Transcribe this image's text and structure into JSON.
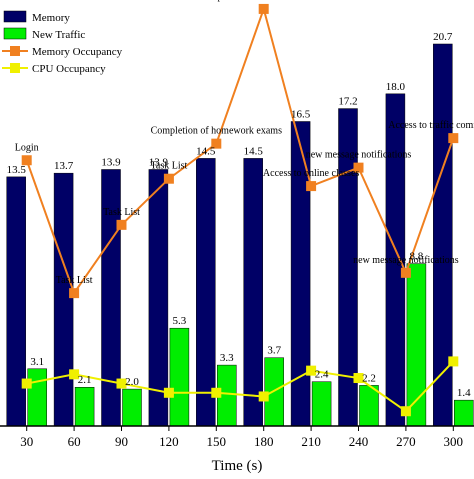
{
  "chart_data": {
    "type": "bar",
    "xlabel": "Time (s)",
    "categories": [
      "30",
      "60",
      "90",
      "120",
      "150",
      "180",
      "210",
      "240",
      "270",
      "300"
    ],
    "ylim": [
      0,
      22
    ],
    "series": [
      {
        "name": "Memory",
        "kind": "bar",
        "color": "#000066",
        "values": [
          13.5,
          13.7,
          13.9,
          13.9,
          14.5,
          14.5,
          16.5,
          17.2,
          18.0,
          20.7
        ],
        "labels": [
          "13.5",
          "13.7",
          "13.9",
          "13.9",
          "14.5",
          "14.5",
          "16.5",
          "17.2",
          "18.0",
          "20.7"
        ]
      },
      {
        "name": "New Traffic",
        "kind": "bar",
        "color": "#00ee00",
        "values": [
          3.1,
          2.1,
          2.0,
          5.3,
          3.3,
          3.7,
          2.4,
          2.2,
          8.8,
          1.4
        ],
        "labels": [
          "3.1",
          "2.1",
          "2.0",
          "5.3",
          "3.3",
          "3.7",
          "2.4",
          "2.2",
          "8.8",
          "1.4"
        ]
      },
      {
        "name": "Memory Occupancy",
        "kind": "line",
        "color": "#f08020",
        "values": [
          14.4,
          7.2,
          10.9,
          13.4,
          15.3,
          22.6,
          13.0,
          14.0,
          8.3,
          15.6
        ]
      },
      {
        "name": "CPU Occupancy",
        "kind": "line",
        "color": "#f0f000",
        "values": [
          2.3,
          2.8,
          2.3,
          1.8,
          1.8,
          1.6,
          3.0,
          2.6,
          0.8,
          3.5
        ]
      }
    ],
    "annotations": [
      {
        "text": "Login",
        "index": 0
      },
      {
        "text": "Task List",
        "index": 1
      },
      {
        "text": "Task List",
        "index": 2
      },
      {
        "text": "Task List",
        "index": 3
      },
      {
        "text": "Completion of homework exams",
        "index": 4
      },
      {
        "text": "Completion of homework exams",
        "index": 5
      },
      {
        "text": "Access to online classes",
        "index": 6
      },
      {
        "text": "new message notifications",
        "index": 7
      },
      {
        "text": "new message notifications",
        "index": 8
      },
      {
        "text": "Access to traffic communication",
        "index": 9
      }
    ],
    "legend_position": "top-left",
    "grid": false
  }
}
